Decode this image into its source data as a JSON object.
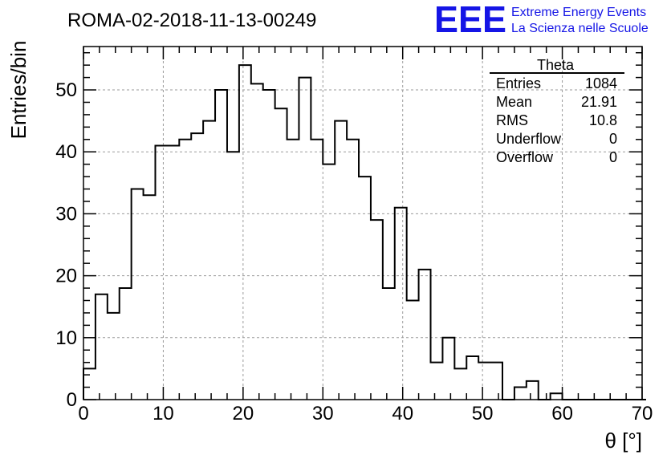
{
  "header": {
    "run_title": "ROMA-02-2018-11-13-00249",
    "logo_text": "EEE",
    "logo_line1": "Extreme Energy Events",
    "logo_line2": "La Scienza nelle Scuole",
    "logo_color": "#1515e6"
  },
  "stats_box": {
    "title": "Theta",
    "rows": [
      {
        "label": "Entries",
        "value": "1084"
      },
      {
        "label": "Mean",
        "value": "21.91"
      },
      {
        "label": "RMS",
        "value": "10.8"
      },
      {
        "label": "Underflow",
        "value": "0"
      },
      {
        "label": "Overflow",
        "value": "0"
      }
    ]
  },
  "chart_data": {
    "type": "bar",
    "style": "step-histogram",
    "title": "ROMA-02-2018-11-13-00249",
    "xlabel": "θ [°]",
    "ylabel": "Entries/bin",
    "xlim": [
      0,
      70
    ],
    "ylim": [
      0,
      57
    ],
    "bin_width": 1.5,
    "x_ticks": [
      0,
      10,
      20,
      30,
      40,
      50,
      60,
      70
    ],
    "y_ticks": [
      0,
      10,
      20,
      30,
      40,
      50
    ],
    "grid": true,
    "line_color": "#000000",
    "values": [
      5,
      17,
      14,
      18,
      34,
      33,
      41,
      41,
      42,
      43,
      45,
      50,
      40,
      54,
      51,
      50,
      47,
      42,
      52,
      42,
      38,
      45,
      42,
      36,
      29,
      18,
      31,
      16,
      21,
      6,
      10,
      5,
      7,
      6,
      6,
      0,
      2,
      3,
      0,
      1,
      0,
      0,
      0,
      0,
      0,
      0,
      0
    ]
  }
}
